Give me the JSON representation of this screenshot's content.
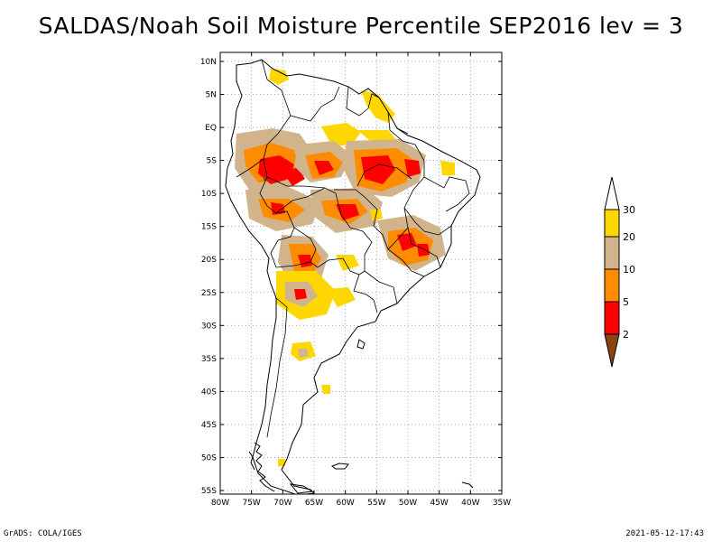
{
  "title": "SALDAS/Noah Soil Moisture Percentile SEP2016 lev = 3",
  "map": {
    "lat_ticks": [
      "10N",
      "5N",
      "EQ",
      "5S",
      "10S",
      "15S",
      "20S",
      "25S",
      "30S",
      "35S",
      "40S",
      "45S",
      "50S",
      "55S"
    ],
    "lon_ticks": [
      "80W",
      "75W",
      "70W",
      "65W",
      "60W",
      "55W",
      "50W",
      "45W",
      "40W",
      "35W"
    ],
    "extent": {
      "lon": [
        -80,
        -35
      ],
      "lat": [
        -55,
        10
      ]
    }
  },
  "colorbar": {
    "labels": [
      "2",
      "5",
      "10",
      "20",
      "30"
    ],
    "classes": [
      {
        "range": "< 2",
        "color": "#8b4513"
      },
      {
        "range": "2-5",
        "color": "#ff0000"
      },
      {
        "range": "5-10",
        "color": "#ff8c00"
      },
      {
        "range": "10-20",
        "color": "#d2b48c"
      },
      {
        "range": "20-30",
        "color": "#ffd700"
      },
      {
        "range": "> 30",
        "color": "#ffffff"
      }
    ]
  },
  "footer": {
    "left": "GrADS: COLA/IGES",
    "right": "2021-05-12-17:43"
  }
}
